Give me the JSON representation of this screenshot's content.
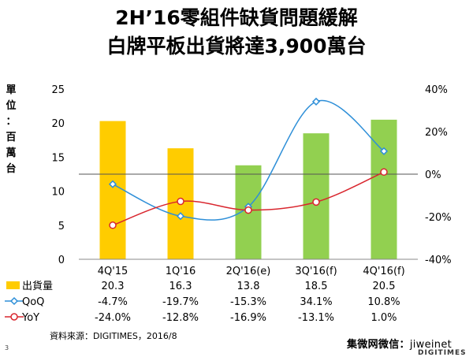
{
  "title_line1": "2H’16零組件缺貨問題緩解",
  "title_line2": "白牌平板出貨將達3,900萬台",
  "source": "資料來源：DIGITIMES，2016/8",
  "page_number": "3",
  "wechat_label": "集微网微信：",
  "wechat_account": "jiweinet",
  "brand_stub": "DIGITIMES",
  "chart_data": {
    "type": "bar",
    "categories": [
      "4Q'15",
      "1Q'16",
      "2Q'16(e)",
      "3Q'16(f)",
      "4Q'16(f)"
    ],
    "ylabel": "單位：百萬台",
    "ylim": [
      0,
      25
    ],
    "y_ticks": [
      "0",
      "5",
      "10",
      "15",
      "20",
      "25"
    ],
    "y2lim": [
      -40,
      40
    ],
    "y2_ticks": [
      "-40%",
      "-20%",
      "0%",
      "20%",
      "40%"
    ],
    "series": [
      {
        "name": "出貨量",
        "kind": "bar",
        "axis": "left",
        "values": [
          20.3,
          16.3,
          13.8,
          18.5,
          20.5
        ],
        "labels": [
          "20.3",
          "16.3",
          "13.8",
          "18.5",
          "20.5"
        ],
        "colors": [
          "#FFCC00",
          "#FFCC00",
          "#92D050",
          "#92D050",
          "#92D050"
        ]
      },
      {
        "name": "QoQ",
        "kind": "line",
        "axis": "right",
        "color": "#2E8FD8",
        "values": [
          -4.7,
          -19.7,
          -15.3,
          34.1,
          10.8
        ],
        "labels": [
          "-4.7%",
          "-19.7%",
          "-15.3%",
          "34.1%",
          "10.8%"
        ]
      },
      {
        "name": "YoY",
        "kind": "line",
        "axis": "right",
        "color": "#D9262E",
        "values": [
          -24.0,
          -12.8,
          -16.9,
          -13.1,
          1.0
        ],
        "labels": [
          "-24.0%",
          "-12.8%",
          "-16.9%",
          "-13.1%",
          "1.0%"
        ]
      }
    ],
    "grid": false,
    "legend": "table-below"
  }
}
